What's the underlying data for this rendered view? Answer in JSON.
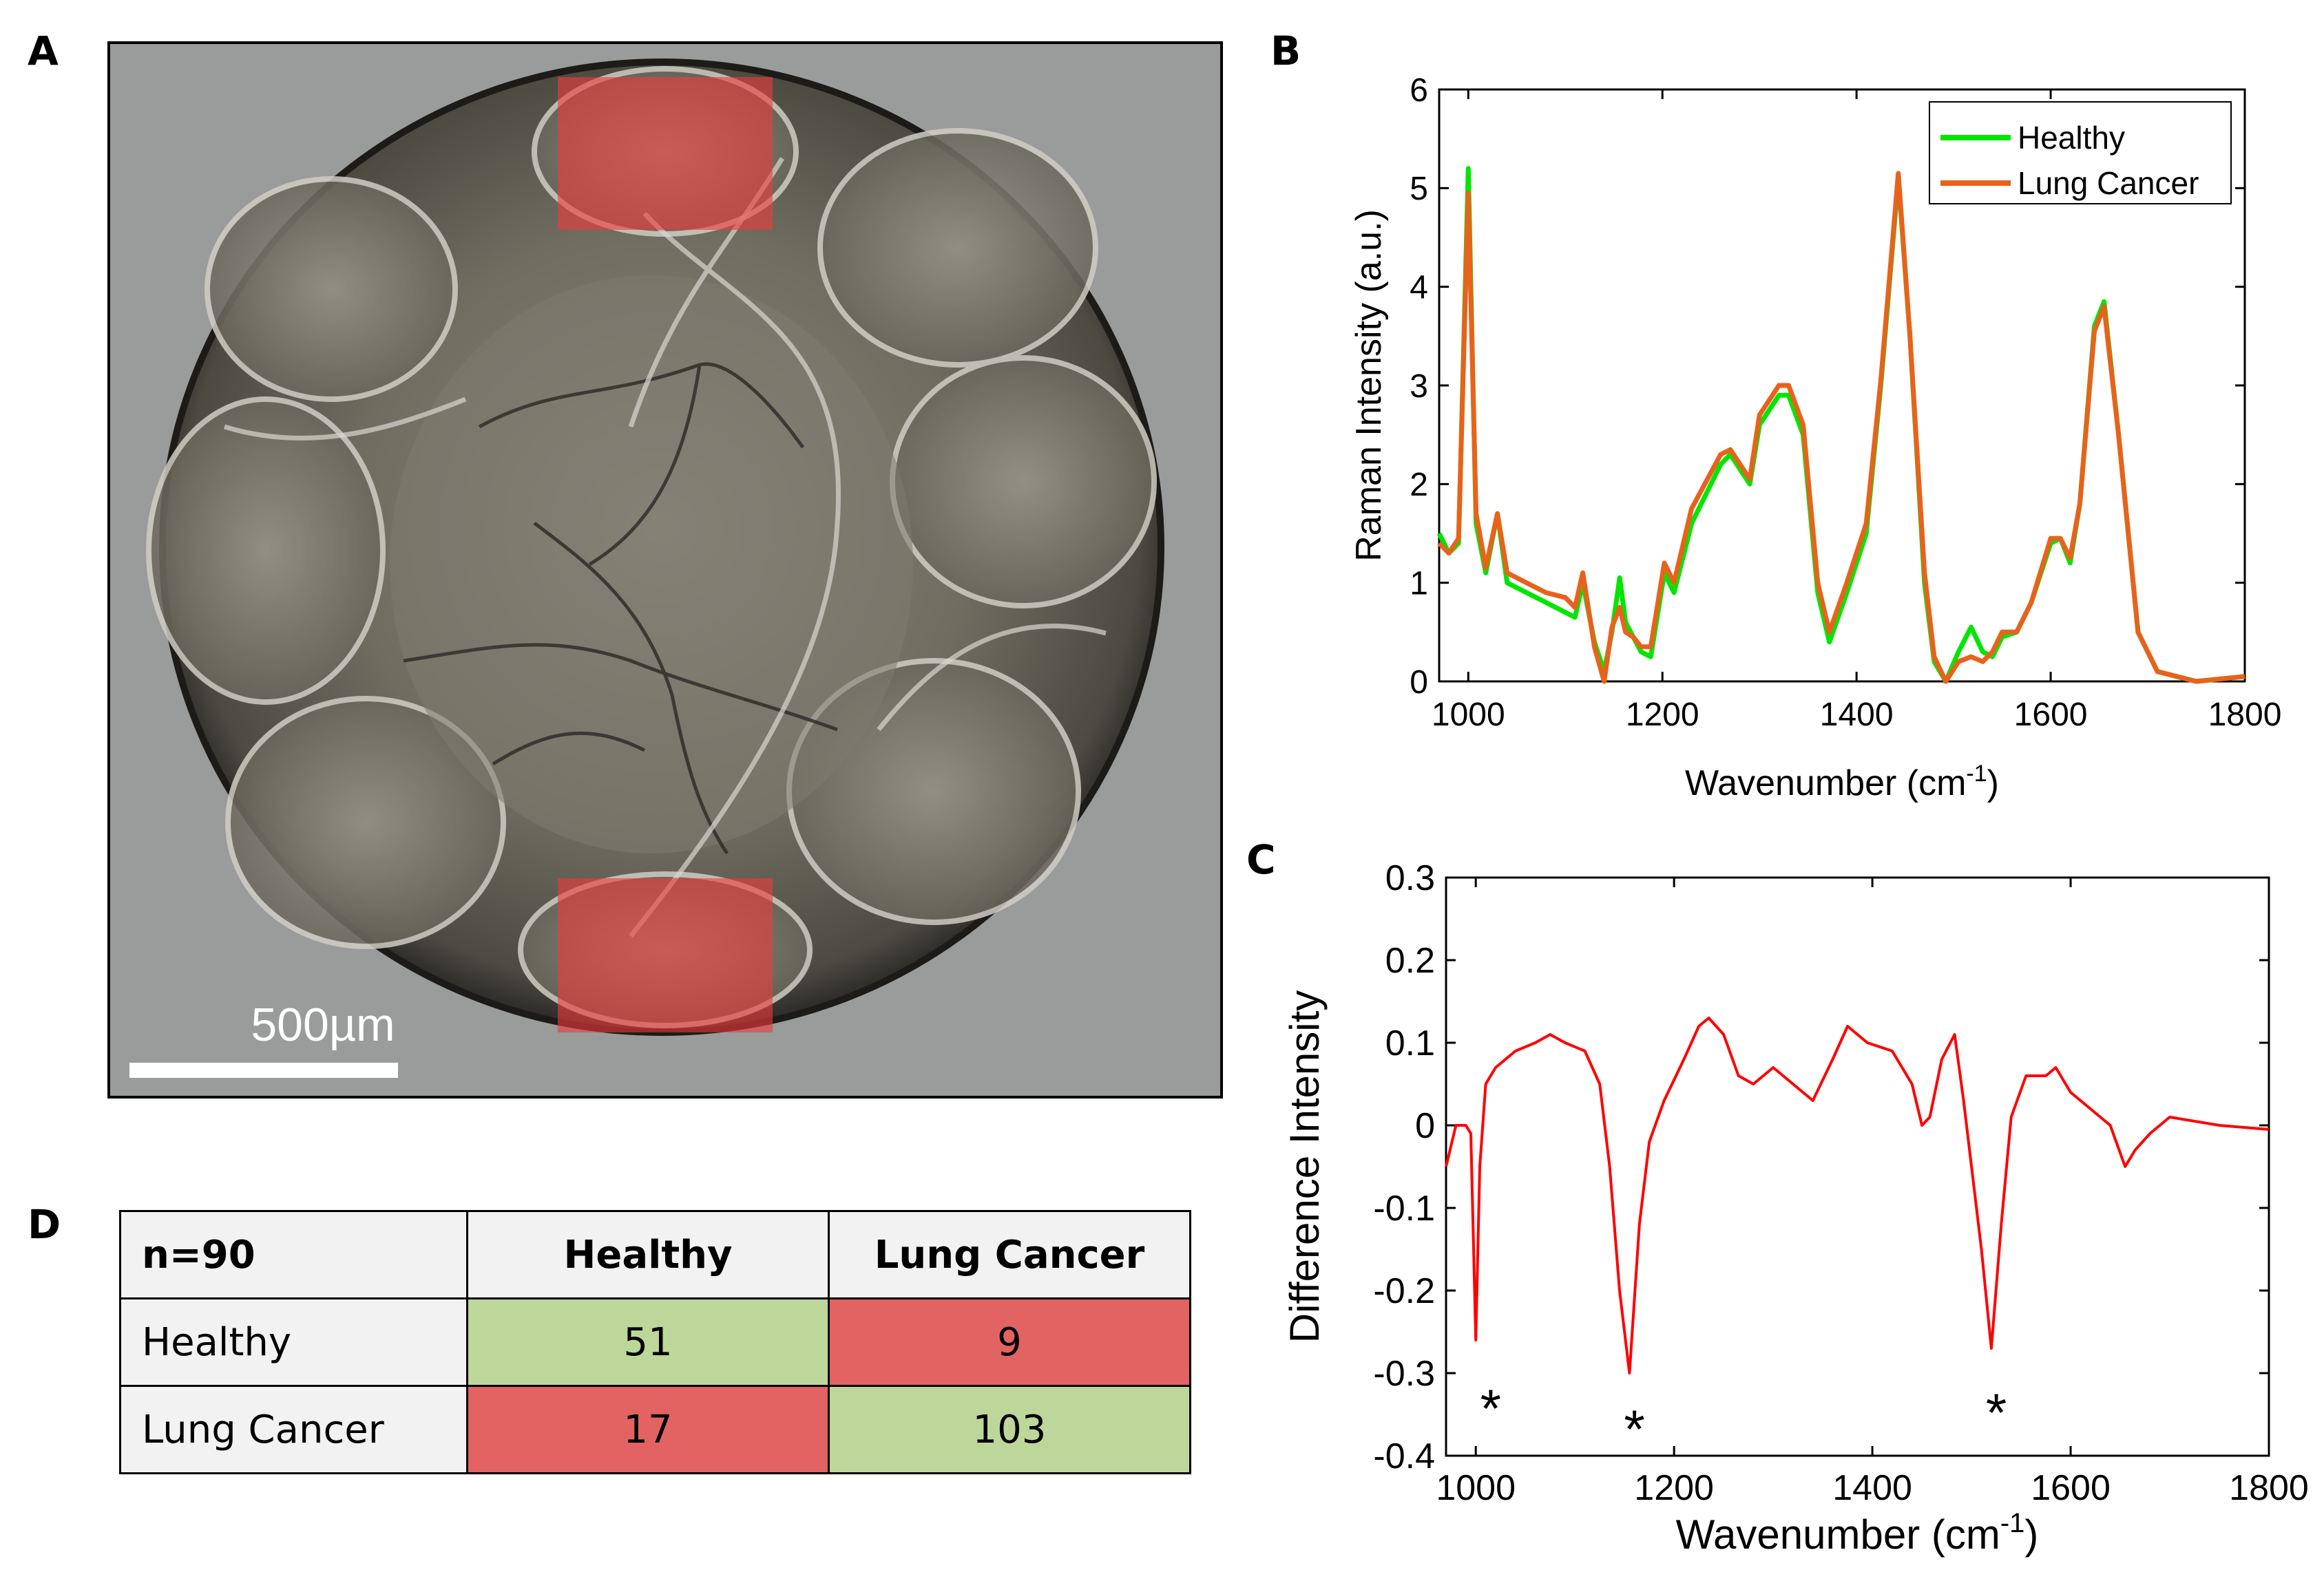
{
  "panels": {
    "a": "A",
    "b": "B",
    "c": "C",
    "d": "D"
  },
  "micrograph": {
    "scale_bar_label": "500µm"
  },
  "table": {
    "header": [
      "n=90",
      "Healthy",
      "Lung Cancer"
    ],
    "rows": [
      {
        "label": "Healthy",
        "values": [
          "51",
          "9"
        ]
      },
      {
        "label": "Lung Cancer",
        "values": [
          "17",
          "103"
        ]
      }
    ]
  },
  "colors": {
    "healthy": "#00e600",
    "lung_cancer": "#e8621c",
    "difference": "#ff0000",
    "table_good": "#bdd79a",
    "table_bad": "#e26362"
  },
  "chart_data": [
    {
      "id": "B",
      "type": "line",
      "title": "",
      "xlabel": "Wavenumber (cm-1)",
      "ylabel": "Raman Intensity (a.u.)",
      "xlim": [
        970,
        1800
      ],
      "ylim": [
        0,
        6
      ],
      "xticks": [
        1000,
        1200,
        1400,
        1600,
        1800
      ],
      "yticks": [
        0,
        1,
        2,
        3,
        4,
        5,
        6
      ],
      "legend": "top-right",
      "series": [
        {
          "name": "Healthy",
          "color": "#00e600",
          "x": [
            970,
            980,
            990,
            1000,
            1008,
            1018,
            1030,
            1040,
            1060,
            1080,
            1100,
            1110,
            1118,
            1130,
            1140,
            1148,
            1156,
            1162,
            1170,
            1178,
            1188,
            1202,
            1212,
            1230,
            1260,
            1270,
            1290,
            1300,
            1320,
            1330,
            1345,
            1360,
            1372,
            1390,
            1410,
            1425,
            1443,
            1455,
            1470,
            1480,
            1492,
            1505,
            1518,
            1530,
            1540,
            1550,
            1565,
            1580,
            1600,
            1610,
            1620,
            1630,
            1645,
            1655,
            1670,
            1690,
            1710,
            1750,
            1800
          ],
          "y": [
            1.5,
            1.3,
            1.4,
            5.2,
            1.6,
            1.1,
            1.7,
            1.0,
            0.9,
            0.8,
            0.7,
            0.65,
            1.0,
            0.4,
            0.1,
            0.5,
            1.05,
            0.6,
            0.45,
            0.3,
            0.25,
            1.1,
            0.9,
            1.6,
            2.2,
            2.3,
            2.0,
            2.6,
            2.9,
            2.9,
            2.5,
            0.9,
            0.4,
            0.9,
            1.5,
            3.0,
            5.1,
            3.5,
            1.0,
            0.2,
            0.0,
            0.3,
            0.55,
            0.3,
            0.25,
            0.45,
            0.5,
            0.8,
            1.4,
            1.45,
            1.2,
            1.8,
            3.6,
            3.85,
            2.5,
            0.5,
            0.1,
            0.0,
            0.05
          ]
        },
        {
          "name": "Lung Cancer",
          "color": "#e8621c",
          "x": [
            970,
            980,
            990,
            1000,
            1008,
            1018,
            1030,
            1040,
            1060,
            1080,
            1100,
            1110,
            1118,
            1130,
            1140,
            1148,
            1156,
            1162,
            1170,
            1178,
            1188,
            1202,
            1212,
            1230,
            1260,
            1270,
            1290,
            1300,
            1320,
            1330,
            1345,
            1360,
            1372,
            1390,
            1410,
            1425,
            1443,
            1455,
            1470,
            1480,
            1492,
            1505,
            1518,
            1530,
            1540,
            1550,
            1565,
            1580,
            1600,
            1610,
            1620,
            1630,
            1645,
            1655,
            1670,
            1690,
            1710,
            1750,
            1800
          ],
          "y": [
            1.4,
            1.3,
            1.45,
            4.95,
            1.7,
            1.15,
            1.7,
            1.1,
            1.0,
            0.9,
            0.85,
            0.75,
            1.1,
            0.35,
            0.0,
            0.55,
            0.75,
            0.5,
            0.45,
            0.35,
            0.35,
            1.2,
            1.0,
            1.75,
            2.3,
            2.35,
            2.05,
            2.7,
            3.0,
            3.0,
            2.6,
            1.0,
            0.5,
            1.0,
            1.6,
            3.05,
            5.15,
            3.5,
            1.1,
            0.25,
            0.0,
            0.2,
            0.25,
            0.2,
            0.3,
            0.5,
            0.5,
            0.8,
            1.45,
            1.45,
            1.25,
            1.8,
            3.55,
            3.8,
            2.5,
            0.5,
            0.1,
            0.0,
            0.05
          ]
        }
      ]
    },
    {
      "id": "C",
      "type": "line",
      "title": "",
      "xlabel": "Wavenumber (cm-1)",
      "ylabel": "Difference Intensity",
      "xlim": [
        970,
        1800
      ],
      "ylim": [
        -0.4,
        0.3
      ],
      "xticks": [
        1000,
        1200,
        1400,
        1600,
        1800
      ],
      "yticks": [
        -0.4,
        -0.3,
        -0.2,
        -0.1,
        0,
        0.1,
        0.2,
        0.3
      ],
      "ytick_labels": [
        "-0.4",
        "-0.3",
        "-0.2",
        "-0.1",
        "0",
        "0.1",
        "0.2",
        "0.3"
      ],
      "series": [
        {
          "name": "Difference",
          "color": "#ff0000",
          "x": [
            970,
            980,
            990,
            995,
            1000,
            1004,
            1010,
            1020,
            1040,
            1060,
            1075,
            1090,
            1110,
            1125,
            1135,
            1145,
            1155,
            1165,
            1175,
            1190,
            1210,
            1225,
            1235,
            1250,
            1265,
            1280,
            1300,
            1320,
            1340,
            1360,
            1375,
            1395,
            1420,
            1440,
            1450,
            1458,
            1470,
            1483,
            1492,
            1500,
            1510,
            1520,
            1530,
            1540,
            1555,
            1575,
            1585,
            1600,
            1620,
            1640,
            1655,
            1665,
            1680,
            1700,
            1750,
            1800
          ],
          "y": [
            -0.05,
            0.0,
            0.0,
            -0.01,
            -0.26,
            -0.05,
            0.05,
            0.07,
            0.09,
            0.1,
            0.11,
            0.1,
            0.09,
            0.05,
            -0.05,
            -0.2,
            -0.3,
            -0.12,
            -0.02,
            0.03,
            0.08,
            0.12,
            0.13,
            0.11,
            0.06,
            0.05,
            0.07,
            0.05,
            0.03,
            0.08,
            0.12,
            0.1,
            0.09,
            0.05,
            0.0,
            0.01,
            0.08,
            0.11,
            0.03,
            -0.05,
            -0.15,
            -0.27,
            -0.12,
            0.01,
            0.06,
            0.06,
            0.07,
            0.04,
            0.02,
            0.0,
            -0.05,
            -0.03,
            -0.01,
            0.01,
            0.0,
            -0.005
          ]
        }
      ],
      "annotations": [
        {
          "text": "*",
          "x": 1015,
          "y": -0.34
        },
        {
          "text": "*",
          "x": 1160,
          "y": -0.365
        },
        {
          "text": "*",
          "x": 1525,
          "y": -0.345
        }
      ]
    }
  ]
}
